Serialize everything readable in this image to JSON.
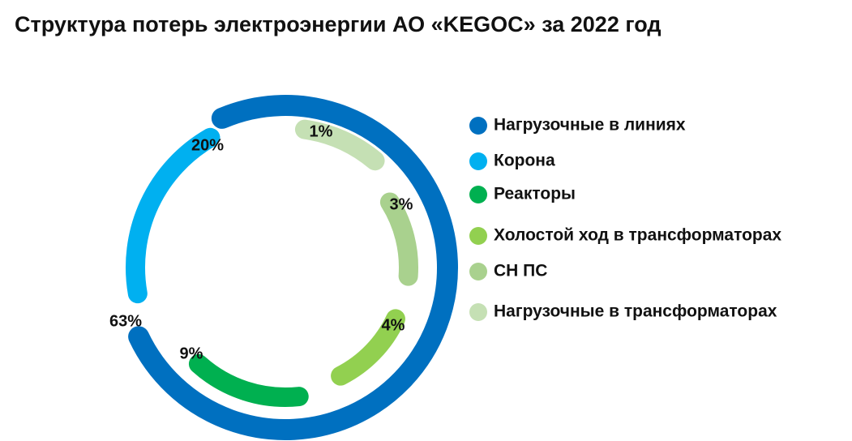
{
  "chart_data": {
    "type": "radial",
    "title": "Структура потерь электроэнергии АО «KEGOC» за 2022 год",
    "categories": [
      "Нагрузочные в линиях",
      "Корона",
      "Реакторы",
      "Холостой ход в трансформаторах",
      "СН ПС",
      "Нагрузочные в трансформаторах"
    ],
    "values": [
      63,
      20,
      9,
      4,
      3,
      1
    ],
    "value_labels": [
      "63%",
      "20%",
      "9%",
      "4%",
      "3%",
      "1%"
    ],
    "colors": [
      "#0070c0",
      "#00b0f0",
      "#00b050",
      "#92d050",
      "#a9d18e",
      "#c5e0b4"
    ]
  }
}
